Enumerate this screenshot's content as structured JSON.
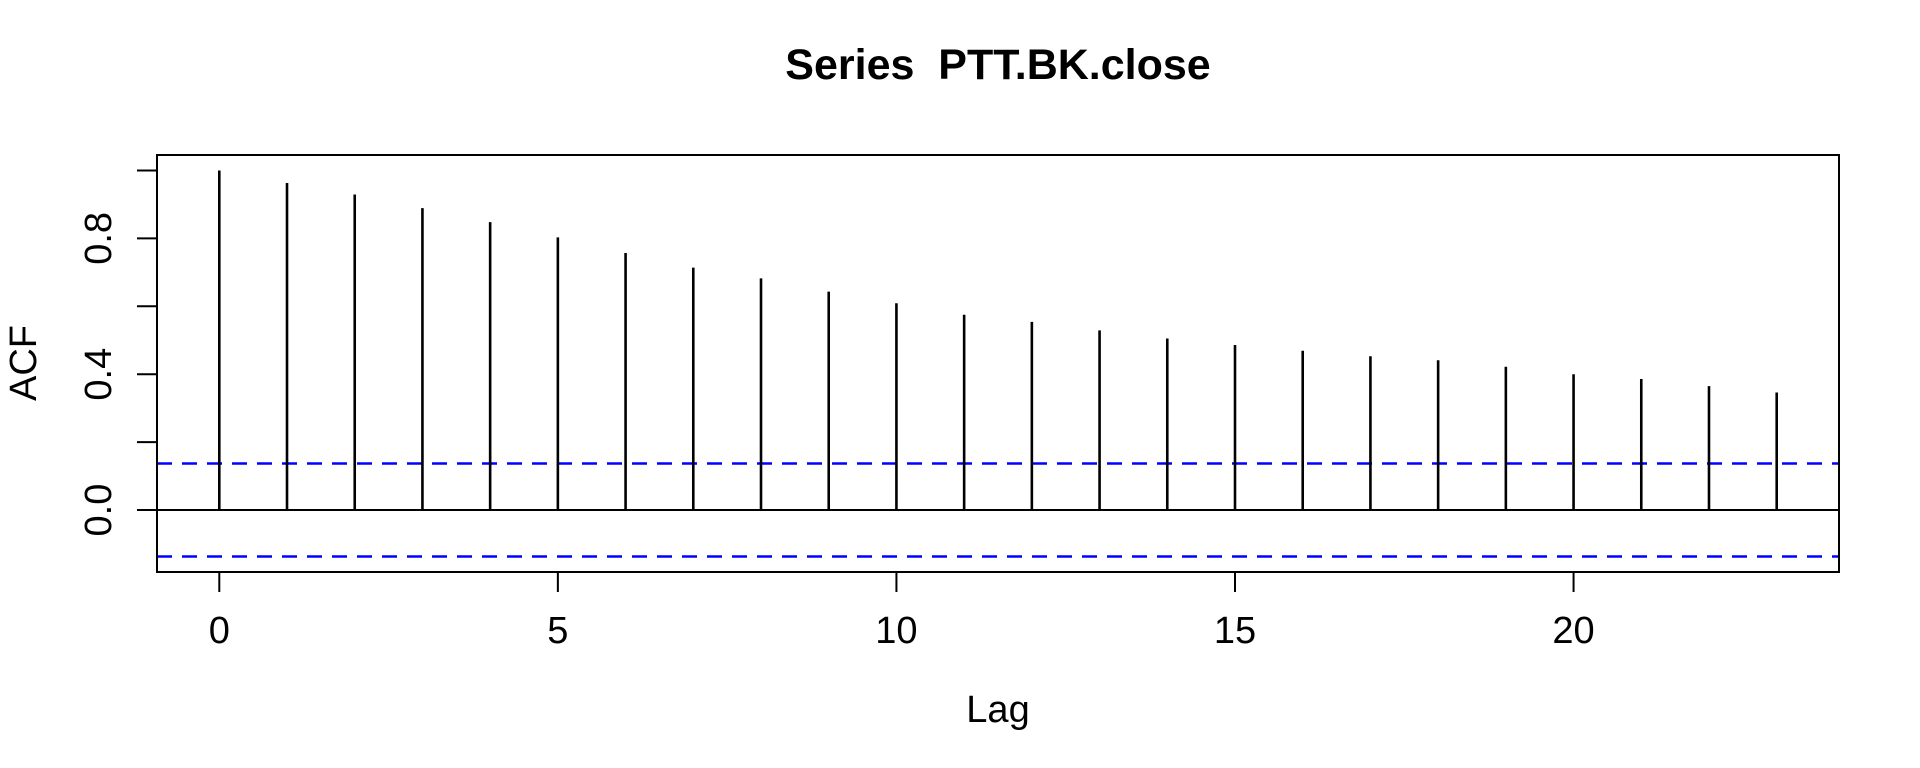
{
  "figure": {
    "background": "#ffffff",
    "frame_color": "#000000"
  },
  "chart_data": {
    "type": "bar",
    "subtype": "acf-stem-plot",
    "title": "Series  PTT.BK.close",
    "xlabel": "Lag",
    "ylabel": "ACF",
    "x": [
      0,
      1,
      2,
      3,
      4,
      5,
      6,
      7,
      8,
      9,
      10,
      11,
      12,
      13,
      14,
      15,
      16,
      17,
      18,
      19,
      20,
      21,
      22,
      23
    ],
    "values": [
      1.0,
      0.963,
      0.929,
      0.889,
      0.848,
      0.803,
      0.757,
      0.714,
      0.682,
      0.643,
      0.609,
      0.575,
      0.554,
      0.529,
      0.505,
      0.486,
      0.469,
      0.453,
      0.441,
      0.422,
      0.4,
      0.386,
      0.365,
      0.346
    ],
    "confidence_bounds": [
      0.137,
      -0.137
    ],
    "confidence_line_color": "#0000ff",
    "confidence_line_style": "dashed",
    "bar_color": "#000000",
    "zero_line": 0.0,
    "xlim": [
      -0.92,
      23.92
    ],
    "ylim": [
      -0.1825,
      1.0455
    ],
    "x_ticks": [
      {
        "value": 0,
        "label": "0"
      },
      {
        "value": 5,
        "label": "5"
      },
      {
        "value": 10,
        "label": "10"
      },
      {
        "value": 15,
        "label": "15"
      },
      {
        "value": 20,
        "label": "20"
      }
    ],
    "y_ticks": [
      {
        "value": 0.0,
        "label": "0.0"
      },
      {
        "value": 0.2,
        "label": ""
      },
      {
        "value": 0.4,
        "label": "0.4"
      },
      {
        "value": 0.6,
        "label": ""
      },
      {
        "value": 0.8,
        "label": "0.8"
      },
      {
        "value": 1.0,
        "label": ""
      }
    ],
    "grid": false,
    "legend": null
  }
}
